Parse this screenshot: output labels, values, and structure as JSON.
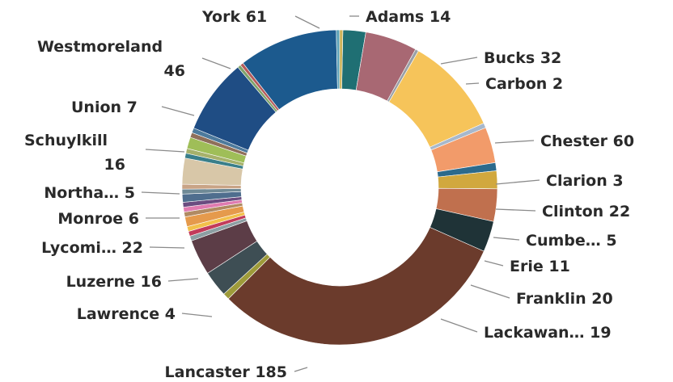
{
  "chart_data": {
    "type": "pie",
    "donut": true,
    "title": "",
    "slices": [
      {
        "label": "Adams 14",
        "value": 14,
        "color": "#1f6f73"
      },
      {
        "label": "Bucks 32",
        "value": 32,
        "color": "#a86873"
      },
      {
        "label": "Carbon 2",
        "value": 2,
        "color": "#9aa0a6"
      },
      {
        "label": "Chester 60",
        "value": 60,
        "color": "#f6c45a"
      },
      {
        "label": "Clarion 3",
        "value": 3,
        "color": "#a7b8cc"
      },
      {
        "label": "Clinton 22",
        "value": 22,
        "color": "#f29b6a"
      },
      {
        "label": "Cumbe… 5",
        "value": 5,
        "color": "#2c6a8c"
      },
      {
        "label": "Erie 11",
        "value": 11,
        "color": "#d1a83e"
      },
      {
        "label": "Franklin 20",
        "value": 20,
        "color": "#c0704e"
      },
      {
        "label": "Lackawan… 19",
        "value": 19,
        "color": "#1f3337"
      },
      {
        "label": "Lancaster 185",
        "value": 185,
        "color": "#6b3b2c"
      },
      {
        "label": "Lawrence 4",
        "value": 4,
        "color": "#9e9b3a"
      },
      {
        "label": "Luzerne 16",
        "value": 16,
        "color": "#3e4e54"
      },
      {
        "label": "Lycomi… 22",
        "value": 22,
        "color": "#5c3d47"
      },
      {
        "label": "Monroe 6",
        "value": 6,
        "color": "#e59a4c"
      },
      {
        "label": "Northa… 5",
        "value": 5,
        "color": "#4f6e8e"
      },
      {
        "label": "Schuylkill 16",
        "value": 16,
        "color": "#d8c7a8"
      },
      {
        "label": "Union 7",
        "value": 7,
        "color": "#9fbe58"
      },
      {
        "label": "Westmoreland 46",
        "value": 46,
        "color": "#1f4d84"
      },
      {
        "label": "York 61",
        "value": 61,
        "color": "#1c5a8e"
      }
    ],
    "other_segments": [
      {
        "value": 3,
        "color": "#8c9fa3"
      },
      {
        "value": 3,
        "color": "#c23b5a"
      },
      {
        "value": 3,
        "color": "#f2c04a"
      },
      {
        "value": 3,
        "color": "#b08a62"
      },
      {
        "value": 3,
        "color": "#e07bb0"
      },
      {
        "value": 3,
        "color": "#6b4c80"
      },
      {
        "value": 3,
        "color": "#6f8a96"
      },
      {
        "value": 3,
        "color": "#c9a486"
      },
      {
        "value": 3,
        "color": "#3a7f8a"
      },
      {
        "value": 3,
        "color": "#a6b16b"
      },
      {
        "value": 3,
        "color": "#8f6f5a"
      },
      {
        "value": 3,
        "color": "#4d7a9c"
      },
      {
        "value": 2,
        "color": "#7fa36b"
      },
      {
        "value": 2,
        "color": "#b55b5b"
      },
      {
        "value": 2,
        "color": "#5fa3b8"
      },
      {
        "value": 2,
        "color": "#cdb45a"
      }
    ],
    "legend": "none"
  }
}
